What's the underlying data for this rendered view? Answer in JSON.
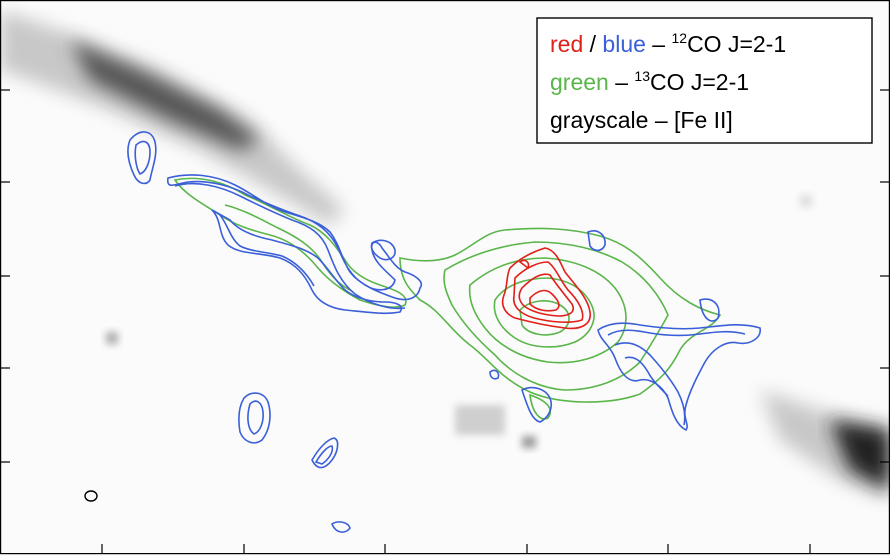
{
  "legend": {
    "line1": {
      "red": "red",
      "slash": " / ",
      "blue": "blue",
      "dash": " – ",
      "sup": "12",
      "label": "CO J=2-1"
    },
    "line2": {
      "green": "green",
      "dash": " – ",
      "sup": "13",
      "label": "CO J=2-1"
    },
    "line3": {
      "label": "grayscale – [Fe II]"
    }
  },
  "colors": {
    "red": "#e0201b",
    "blue": "#3a5fd8",
    "green": "#5ab54a",
    "frame": "#000000",
    "gray": "#555555"
  },
  "icons": {
    "beam": "beam-ellipse-icon"
  }
}
